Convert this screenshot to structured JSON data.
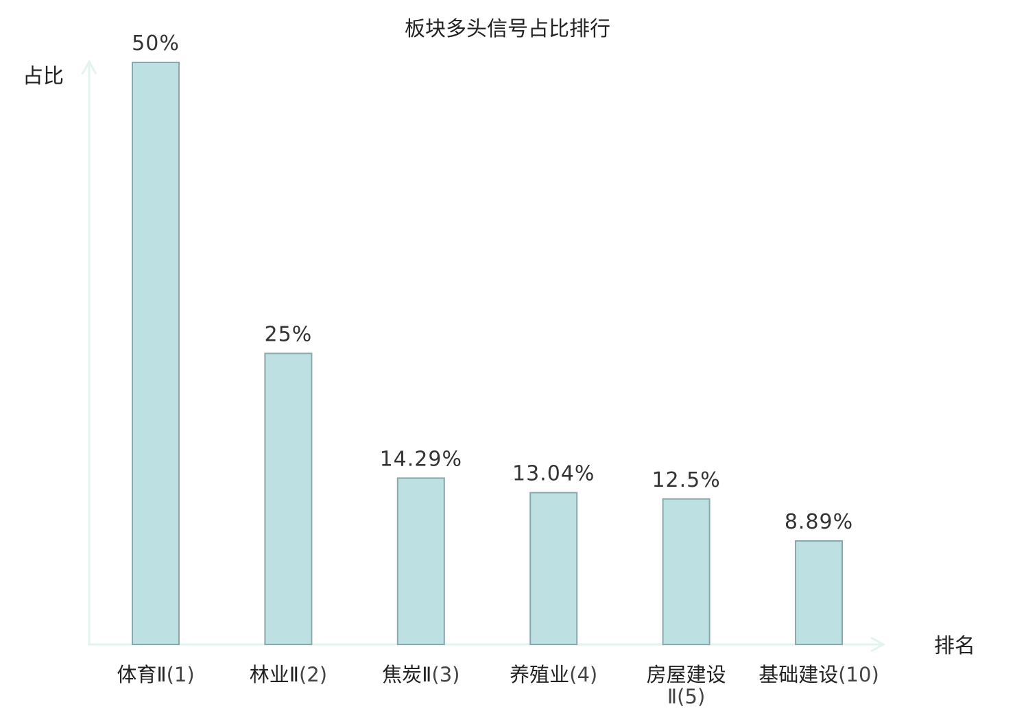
{
  "chart_data": {
    "type": "bar",
    "title": "板块多头信号占比排行",
    "xlabel": "排名",
    "ylabel": "占比",
    "categories": [
      {
        "name": "体育Ⅱ",
        "rank": "(1)",
        "highlight": false
      },
      {
        "name": "林业Ⅱ",
        "rank": "(2)",
        "highlight": false
      },
      {
        "name": "焦炭Ⅱ",
        "rank": "(3)",
        "highlight": false
      },
      {
        "name": "养殖业",
        "rank": "(4)",
        "highlight": false
      },
      {
        "name": "房屋建设",
        "name2": "Ⅱ",
        "rank": "(5)",
        "highlight": false
      },
      {
        "name": "基础建设",
        "rank": "(10)",
        "highlight": true
      }
    ],
    "values": [
      50,
      25,
      14.29,
      13.04,
      12.5,
      8.89
    ],
    "value_labels": [
      "50%",
      "25%",
      "14.29%",
      "13.04%",
      "12.5%",
      "8.89%"
    ],
    "ylim": [
      0,
      50
    ],
    "grid": false,
    "legend": "none"
  },
  "colors": {
    "bar_fill": "#bde0e3",
    "bar_stroke": "#8aa8ab",
    "axis": "#e2f3f0",
    "highlight": "#e8141c",
    "text": "#222222"
  }
}
